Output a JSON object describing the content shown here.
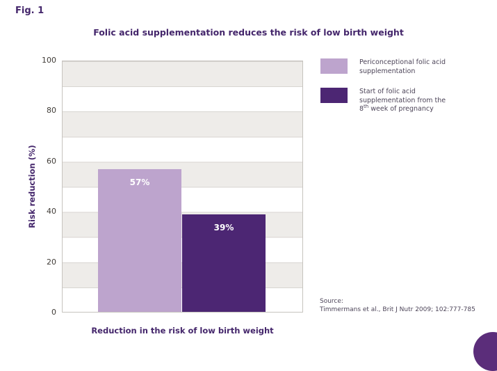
{
  "fig_label": "Fig. 1",
  "title": "Folic acid supplementation reduces the risk of low birth weight",
  "chart_data": {
    "type": "bar",
    "title": "Folic acid supplementation reduces the risk of low birth weight",
    "categories": [
      "Periconceptional folic acid supplementation",
      "Start of folic acid supplementation from the 8th week of pregnancy"
    ],
    "values": [
      57,
      39
    ],
    "bar_labels": [
      "57%",
      "39%"
    ],
    "xlabel": "Reduction in the risk of low birth weight",
    "ylabel": "Risk reduction (%)",
    "ylim": [
      0,
      100
    ],
    "yticks": [
      100,
      80,
      60,
      40,
      20,
      0
    ],
    "grid": "horizontal alternating bands every 10 units with gridlines",
    "legend_position": "right"
  },
  "palette": {
    "light_purple": "#bda4cd",
    "dark_purple": "#4c2673",
    "title_purple": "#44266b",
    "band_gray": "#eeece9",
    "corner_circle": "#5b2d7a"
  },
  "legend": {
    "items": [
      {
        "color": "#bda4cd",
        "lines": [
          "Periconceptional folic acid",
          "supplementation"
        ]
      },
      {
        "color": "#4c2673",
        "lines": [
          "Start of folic acid",
          "supplementation from the"
        ],
        "line3": {
          "base": "8",
          "sup": "th",
          "rest": " week of pregnancy"
        }
      }
    ]
  },
  "source": {
    "label": "Source:",
    "citation": "Timmermans et al., Brit J Nutr 2009; 102:777-785"
  }
}
